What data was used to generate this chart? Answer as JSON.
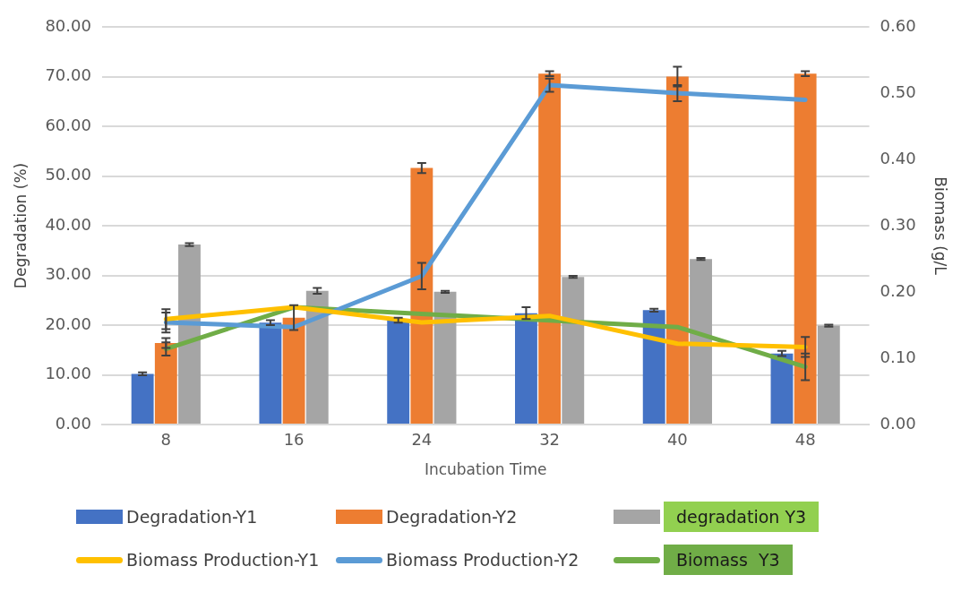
{
  "chart_data": {
    "type": "bar",
    "xlabel": "Incubation Time",
    "ylabel": "Degradation (%)",
    "y2label": "Biomass (g/L",
    "categories": [
      "8",
      "16",
      "24",
      "32",
      "40",
      "48"
    ],
    "series": [
      {
        "name": "Degradation-Y1",
        "color": "#4472c4",
        "values": [
          10.2,
          20.5,
          21.0,
          22.4,
          23.0,
          14.3
        ],
        "errors": [
          0.3,
          0.5,
          0.5,
          1.2,
          0.3,
          0.5
        ]
      },
      {
        "name": "Degradation-Y2",
        "color": "#ed7d31",
        "values": [
          16.4,
          21.5,
          51.6,
          70.6,
          70.0,
          70.6
        ],
        "errors": [
          1.0,
          2.5,
          1.0,
          0.5,
          2.0,
          0.5
        ]
      },
      {
        "name": "degradation Y3",
        "color": "#a5a5a5",
        "values": [
          36.2,
          26.9,
          26.7,
          29.7,
          33.3,
          19.9
        ],
        "errors": [
          0.3,
          0.6,
          0.2,
          0.2,
          0.2,
          0.2
        ]
      },
      {
        "name": "Biomass Production-Y1",
        "type": "line",
        "axis": "y2",
        "color": "#ffc000",
        "values": [
          0.159,
          0.177,
          0.154,
          0.164,
          0.122,
          0.117
        ],
        "errors": [
          0.015,
          null,
          null,
          null,
          null,
          0.015
        ]
      },
      {
        "name": "Biomass Production-Y2",
        "type": "line",
        "axis": "y2",
        "color": "#5b9bd5",
        "values": [
          0.154,
          0.147,
          0.224,
          0.512,
          0.5,
          0.49
        ],
        "errors": [
          0.015,
          null,
          0.02,
          0.01,
          0.012,
          null
        ]
      },
      {
        "name": "Biomass  Y3",
        "type": "line",
        "axis": "y2",
        "color": "#70ad47",
        "values": [
          0.114,
          0.177,
          0.167,
          0.157,
          0.147,
          0.087
        ],
        "errors": [
          0.01,
          null,
          null,
          null,
          null,
          0.02
        ]
      }
    ],
    "ylim": [
      0,
      80
    ],
    "yticks": [
      {
        "value": 0,
        "label": "0.00"
      },
      {
        "value": 10,
        "label": "10.00"
      },
      {
        "value": 20,
        "label": "20.00"
      },
      {
        "value": 30,
        "label": "30.00"
      },
      {
        "value": 40,
        "label": "40.00"
      },
      {
        "value": 50,
        "label": "50.00"
      },
      {
        "value": 60,
        "label": "60.00"
      },
      {
        "value": 70,
        "label": "70.00"
      },
      {
        "value": 80,
        "label": "80.00"
      }
    ],
    "y2lim": [
      0,
      0.6
    ],
    "y2ticks": [
      {
        "value": 0,
        "label": "0.00"
      },
      {
        "value": 0.1,
        "label": "0.10"
      },
      {
        "value": 0.2,
        "label": "0.20"
      },
      {
        "value": 0.3,
        "label": "0.30"
      },
      {
        "value": 0.4,
        "label": "0.40"
      },
      {
        "value": 0.5,
        "label": "0.50"
      },
      {
        "value": 0.6,
        "label": "0.60"
      }
    ],
    "grid": "y",
    "legend": "bottom",
    "line_style": "solid"
  }
}
